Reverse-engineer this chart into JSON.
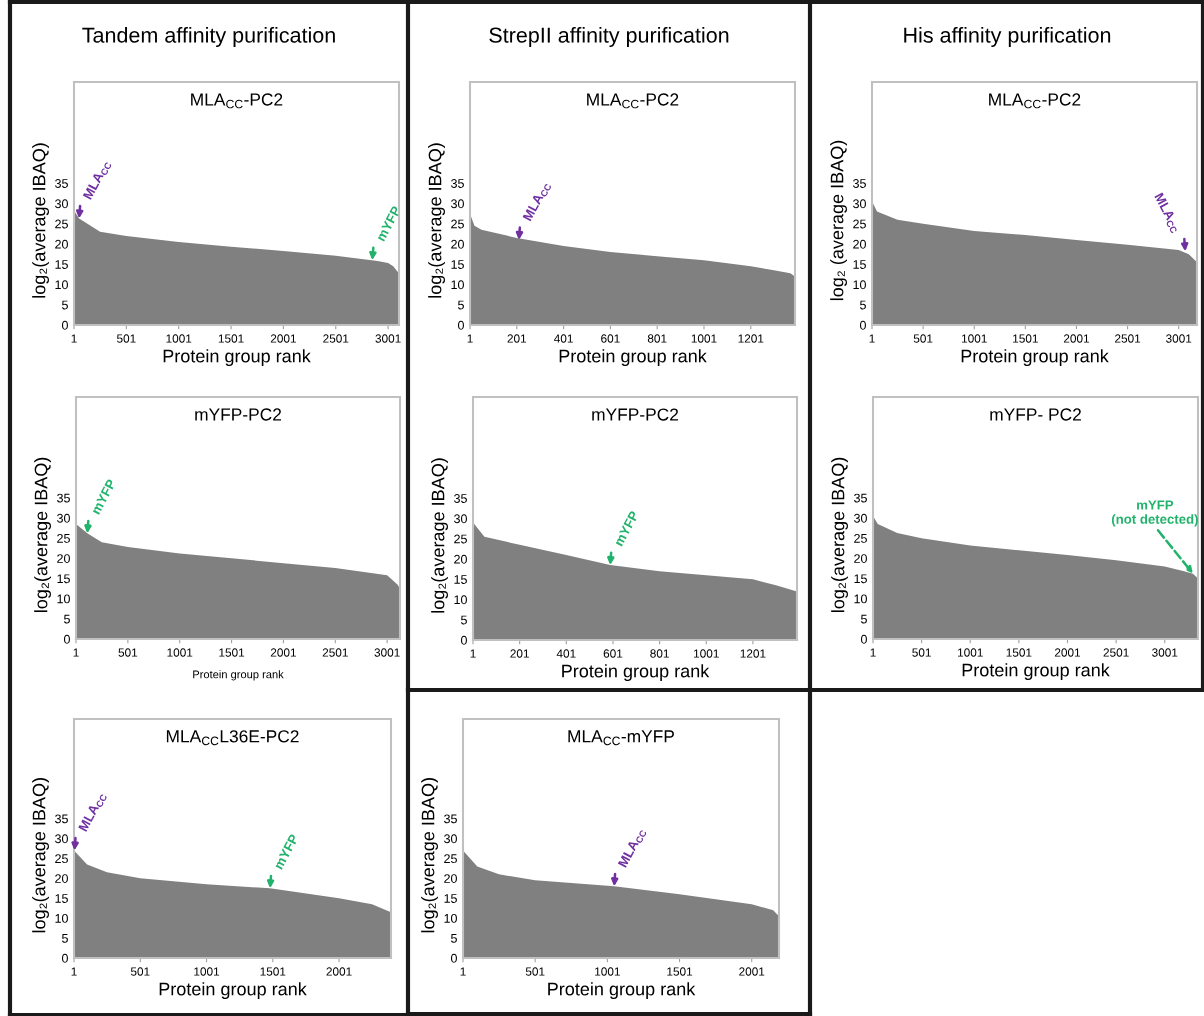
{
  "chart_data": [
    {
      "type": "area",
      "title": "Tandem affinity purification",
      "subtitle": "MLA$_{CC}$-PC2",
      "xlabel": "Protein group rank",
      "ylabel": "log₂(average IBAQ)",
      "color": "#808080",
      "x": [
        1,
        50,
        250,
        501,
        1001,
        1501,
        2001,
        2501,
        2900,
        3001,
        3050,
        3105
      ],
      "values": [
        28.2,
        26.3,
        23,
        22,
        20.5,
        19.3,
        18.3,
        17.1,
        15.8,
        15.3,
        14.5,
        12.7
      ],
      "xlim": [
        1,
        3105
      ],
      "ylim": [
        0,
        60
      ],
      "xticks": [
        1,
        501,
        1001,
        1501,
        2001,
        2501,
        3001
      ],
      "yticks": [
        0,
        5,
        10,
        15,
        20,
        25,
        30,
        35
      ],
      "grid": false,
      "annotations": [
        {
          "text": "MLA$_{CC}$",
          "x": 50,
          "y": 26.3
        },
        {
          "text": "mYFP",
          "x": 2850,
          "y": 16.0
        }
      ]
    },
    {
      "type": "area",
      "title": "StrepII affinity purification",
      "subtitle": "MLA$_{CC}$-PC2",
      "xlabel": "Protein group rank",
      "ylabel": "log₂(average IBAQ)",
      "color": "#808080",
      "x": [
        1,
        20,
        50,
        201,
        401,
        601,
        801,
        1001,
        1201,
        1300,
        1370,
        1390
      ],
      "values": [
        27.5,
        24.5,
        23.5,
        21.5,
        19.5,
        18,
        17,
        16,
        14.5,
        13.5,
        12.8,
        12
      ],
      "xlim": [
        1,
        1390
      ],
      "ylim": [
        0,
        60
      ],
      "xticks": [
        1,
        201,
        401,
        601,
        801,
        1001,
        1201
      ],
      "yticks": [
        0,
        5,
        10,
        15,
        20,
        25,
        30,
        35
      ],
      "grid": false,
      "annotations": [
        {
          "text": "MLA$_{CC}$",
          "x": 210,
          "y": 21
        }
      ]
    },
    {
      "type": "area",
      "title": "His affinity purification",
      "subtitle": "MLA$_{CC}$-PC2",
      "xlabel": "Protein group rank",
      "ylabel": "log₂ (average IBAQ)",
      "color": "#808080",
      "x": [
        1,
        50,
        250,
        501,
        1001,
        1501,
        2001,
        2501,
        3001,
        3100,
        3180
      ],
      "values": [
        30.5,
        28,
        26,
        25,
        23.2,
        22.2,
        21,
        19.8,
        18.5,
        17.5,
        15.5
      ],
      "xlim": [
        1,
        3180
      ],
      "ylim": [
        0,
        60
      ],
      "xticks": [
        1,
        501,
        1001,
        1501,
        2001,
        2501,
        3001
      ],
      "yticks": [
        0,
        5,
        10,
        15,
        20,
        25,
        30,
        35
      ],
      "grid": false,
      "annotations": [
        {
          "text": "MLA$_{CC}$",
          "x": 3065,
          "y": 18.2
        }
      ]
    },
    {
      "type": "area",
      "subtitle": "mYFP-PC2",
      "xlabel": "Protein group rank",
      "ylabel": "log₂(average IBAQ)",
      "color": "#808080",
      "x": [
        1,
        110,
        250,
        501,
        1001,
        1501,
        2001,
        2501,
        3001,
        3100,
        3125
      ],
      "values": [
        28.5,
        26.2,
        24,
        22.8,
        21.2,
        20,
        18.8,
        17.6,
        15.8,
        13.5,
        12.5
      ],
      "xlim": [
        1,
        3125
      ],
      "ylim": [
        0,
        60
      ],
      "xticks": [
        1,
        501,
        1001,
        1501,
        2001,
        2501,
        3001
      ],
      "yticks": [
        0,
        5,
        10,
        15,
        20,
        25,
        30,
        35
      ],
      "grid": false,
      "annotations": [
        {
          "text": "mYFP",
          "x": 110,
          "y": 26.2
        }
      ]
    },
    {
      "type": "area",
      "subtitle": "mYFP- PC2",
      "xlabel": "Protein group rank",
      "ylabel": "log₂(average IBAQ)",
      "color": "#808080",
      "x": [
        1,
        50,
        250,
        501,
        1001,
        1501,
        2001,
        2501,
        3001,
        3200,
        3291,
        3343
      ],
      "values": [
        30.5,
        28.5,
        26.3,
        25,
        23.2,
        22,
        20.8,
        19.5,
        18,
        16.8,
        16.2,
        15
      ],
      "xlim": [
        1,
        3343
      ],
      "ylim": [
        0,
        60
      ],
      "xticks": [
        1,
        501,
        1001,
        1501,
        2001,
        2501,
        3001
      ],
      "yticks": [
        0,
        5,
        10,
        15,
        20,
        25,
        30,
        35
      ],
      "grid": false,
      "annotations": [
        {
          "text": "mYFP\n(not detected)",
          "x": 3291,
          "y": 16.2
        }
      ]
    },
    {
      "type": "area",
      "subtitle": "mYFP-PC2",
      "xlabel": "Protein group rank",
      "ylabel": "log₂(average IBAQ)",
      "color": "#808080",
      "x": [
        1,
        50,
        201,
        401,
        589,
        801,
        1001,
        1201,
        1300,
        1390
      ],
      "values": [
        29,
        25.5,
        23.5,
        21,
        18.5,
        17,
        16,
        15,
        13.5,
        12
      ],
      "xlim": [
        1,
        1390
      ],
      "ylim": [
        0,
        60
      ],
      "xticks": [
        1,
        201,
        401,
        601,
        801,
        1001,
        1201
      ],
      "yticks": [
        0,
        5,
        10,
        15,
        20,
        25,
        30,
        35
      ],
      "grid": false,
      "annotations": [
        {
          "text": "mYFP",
          "x": 589,
          "y": 18.5
        }
      ]
    },
    {
      "type": "area",
      "subtitle": "MLA$_{CC}$L36E-PC2",
      "xlabel": "Protein group rank",
      "ylabel": "log₂(average IBAQ)",
      "color": "#808080",
      "x": [
        1,
        100,
        250,
        501,
        1001,
        1480,
        2001,
        2250,
        2393
      ],
      "values": [
        27,
        23.5,
        21.5,
        20,
        18.5,
        17.5,
        15,
        13.5,
        11.5
      ],
      "xlim": [
        1,
        2393
      ],
      "ylim": [
        0,
        60
      ],
      "xticks": [
        1,
        501,
        1001,
        1501,
        2001
      ],
      "yticks": [
        0,
        5,
        10,
        15,
        20,
        25,
        30,
        35
      ],
      "grid": false,
      "annotations": [
        {
          "text": "MLA$_{CC}$",
          "x": 5,
          "y": 27
        },
        {
          "text": "mYFP",
          "x": 1480,
          "y": 17.5
        }
      ]
    },
    {
      "type": "area",
      "subtitle": "MLA$_{CC}$-mYFP",
      "xlabel": "Protein group rank",
      "ylabel": "log₂(average IBAQ)",
      "color": "#808080",
      "x": [
        1,
        100,
        250,
        501,
        1048,
        1501,
        2001,
        2150,
        2190
      ],
      "values": [
        27,
        23,
        21,
        19.5,
        18,
        16,
        13.5,
        12,
        10.5
      ],
      "xlim": [
        1,
        2190
      ],
      "ylim": [
        0,
        60
      ],
      "xticks": [
        1,
        501,
        1001,
        1501,
        2001
      ],
      "yticks": [
        0,
        5,
        10,
        15,
        20,
        25,
        30,
        35
      ],
      "grid": false,
      "annotations": [
        {
          "text": "MLA$_{CC}$",
          "x": 1048,
          "y": 18
        }
      ]
    }
  ]
}
